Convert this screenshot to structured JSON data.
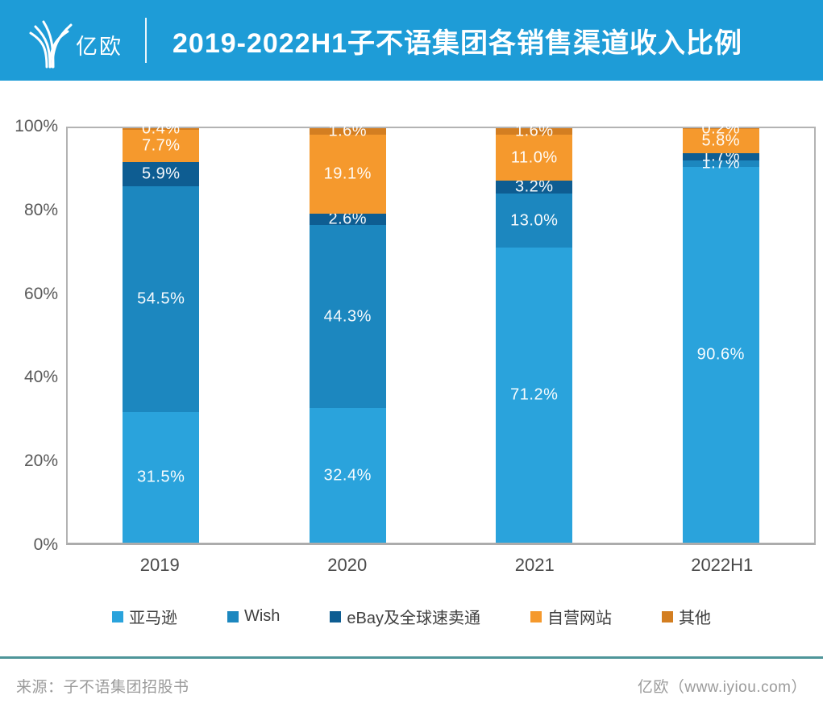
{
  "header": {
    "logo_text": "亿欧",
    "title": "2019-2022H1子不语集团各销售渠道收入比例"
  },
  "chart_data": {
    "type": "bar",
    "stacked": true,
    "title": "2019-2022H1子不语集团各销售渠道收入比例",
    "categories": [
      "2019",
      "2020",
      "2021",
      "2022H1"
    ],
    "series": [
      {
        "name": "亚马逊",
        "color": "#2AA3DC",
        "values": [
          31.5,
          32.4,
          71.2,
          90.6
        ]
      },
      {
        "name": "Wish",
        "color": "#1C87BF",
        "values": [
          54.5,
          44.3,
          13.0,
          1.7
        ]
      },
      {
        "name": "eBay及全球速卖通",
        "color": "#0E5D92",
        "values": [
          5.9,
          2.6,
          3.2,
          1.7
        ]
      },
      {
        "name": "自营网站",
        "color": "#F5992D",
        "values": [
          7.7,
          19.1,
          11.0,
          5.8
        ]
      },
      {
        "name": "其他",
        "color": "#D37E21",
        "values": [
          0.4,
          1.6,
          1.6,
          0.2
        ]
      }
    ],
    "y_ticks": [
      "0%",
      "20%",
      "40%",
      "60%",
      "80%",
      "100%"
    ],
    "ylim": [
      0,
      100
    ],
    "value_suffix": "%",
    "grid": "top-border-only",
    "legend_position": "bottom"
  },
  "footer": {
    "source": "来源：子不语集团招股书",
    "credit": "亿欧（www.iyiou.com）"
  },
  "colors": {
    "header_bg": "#1E9CD7",
    "divider_teal": "#4E9599",
    "axis_border": "#B3B3B3",
    "tick_text": "#595959",
    "footer_text": "#9B9B9B"
  }
}
